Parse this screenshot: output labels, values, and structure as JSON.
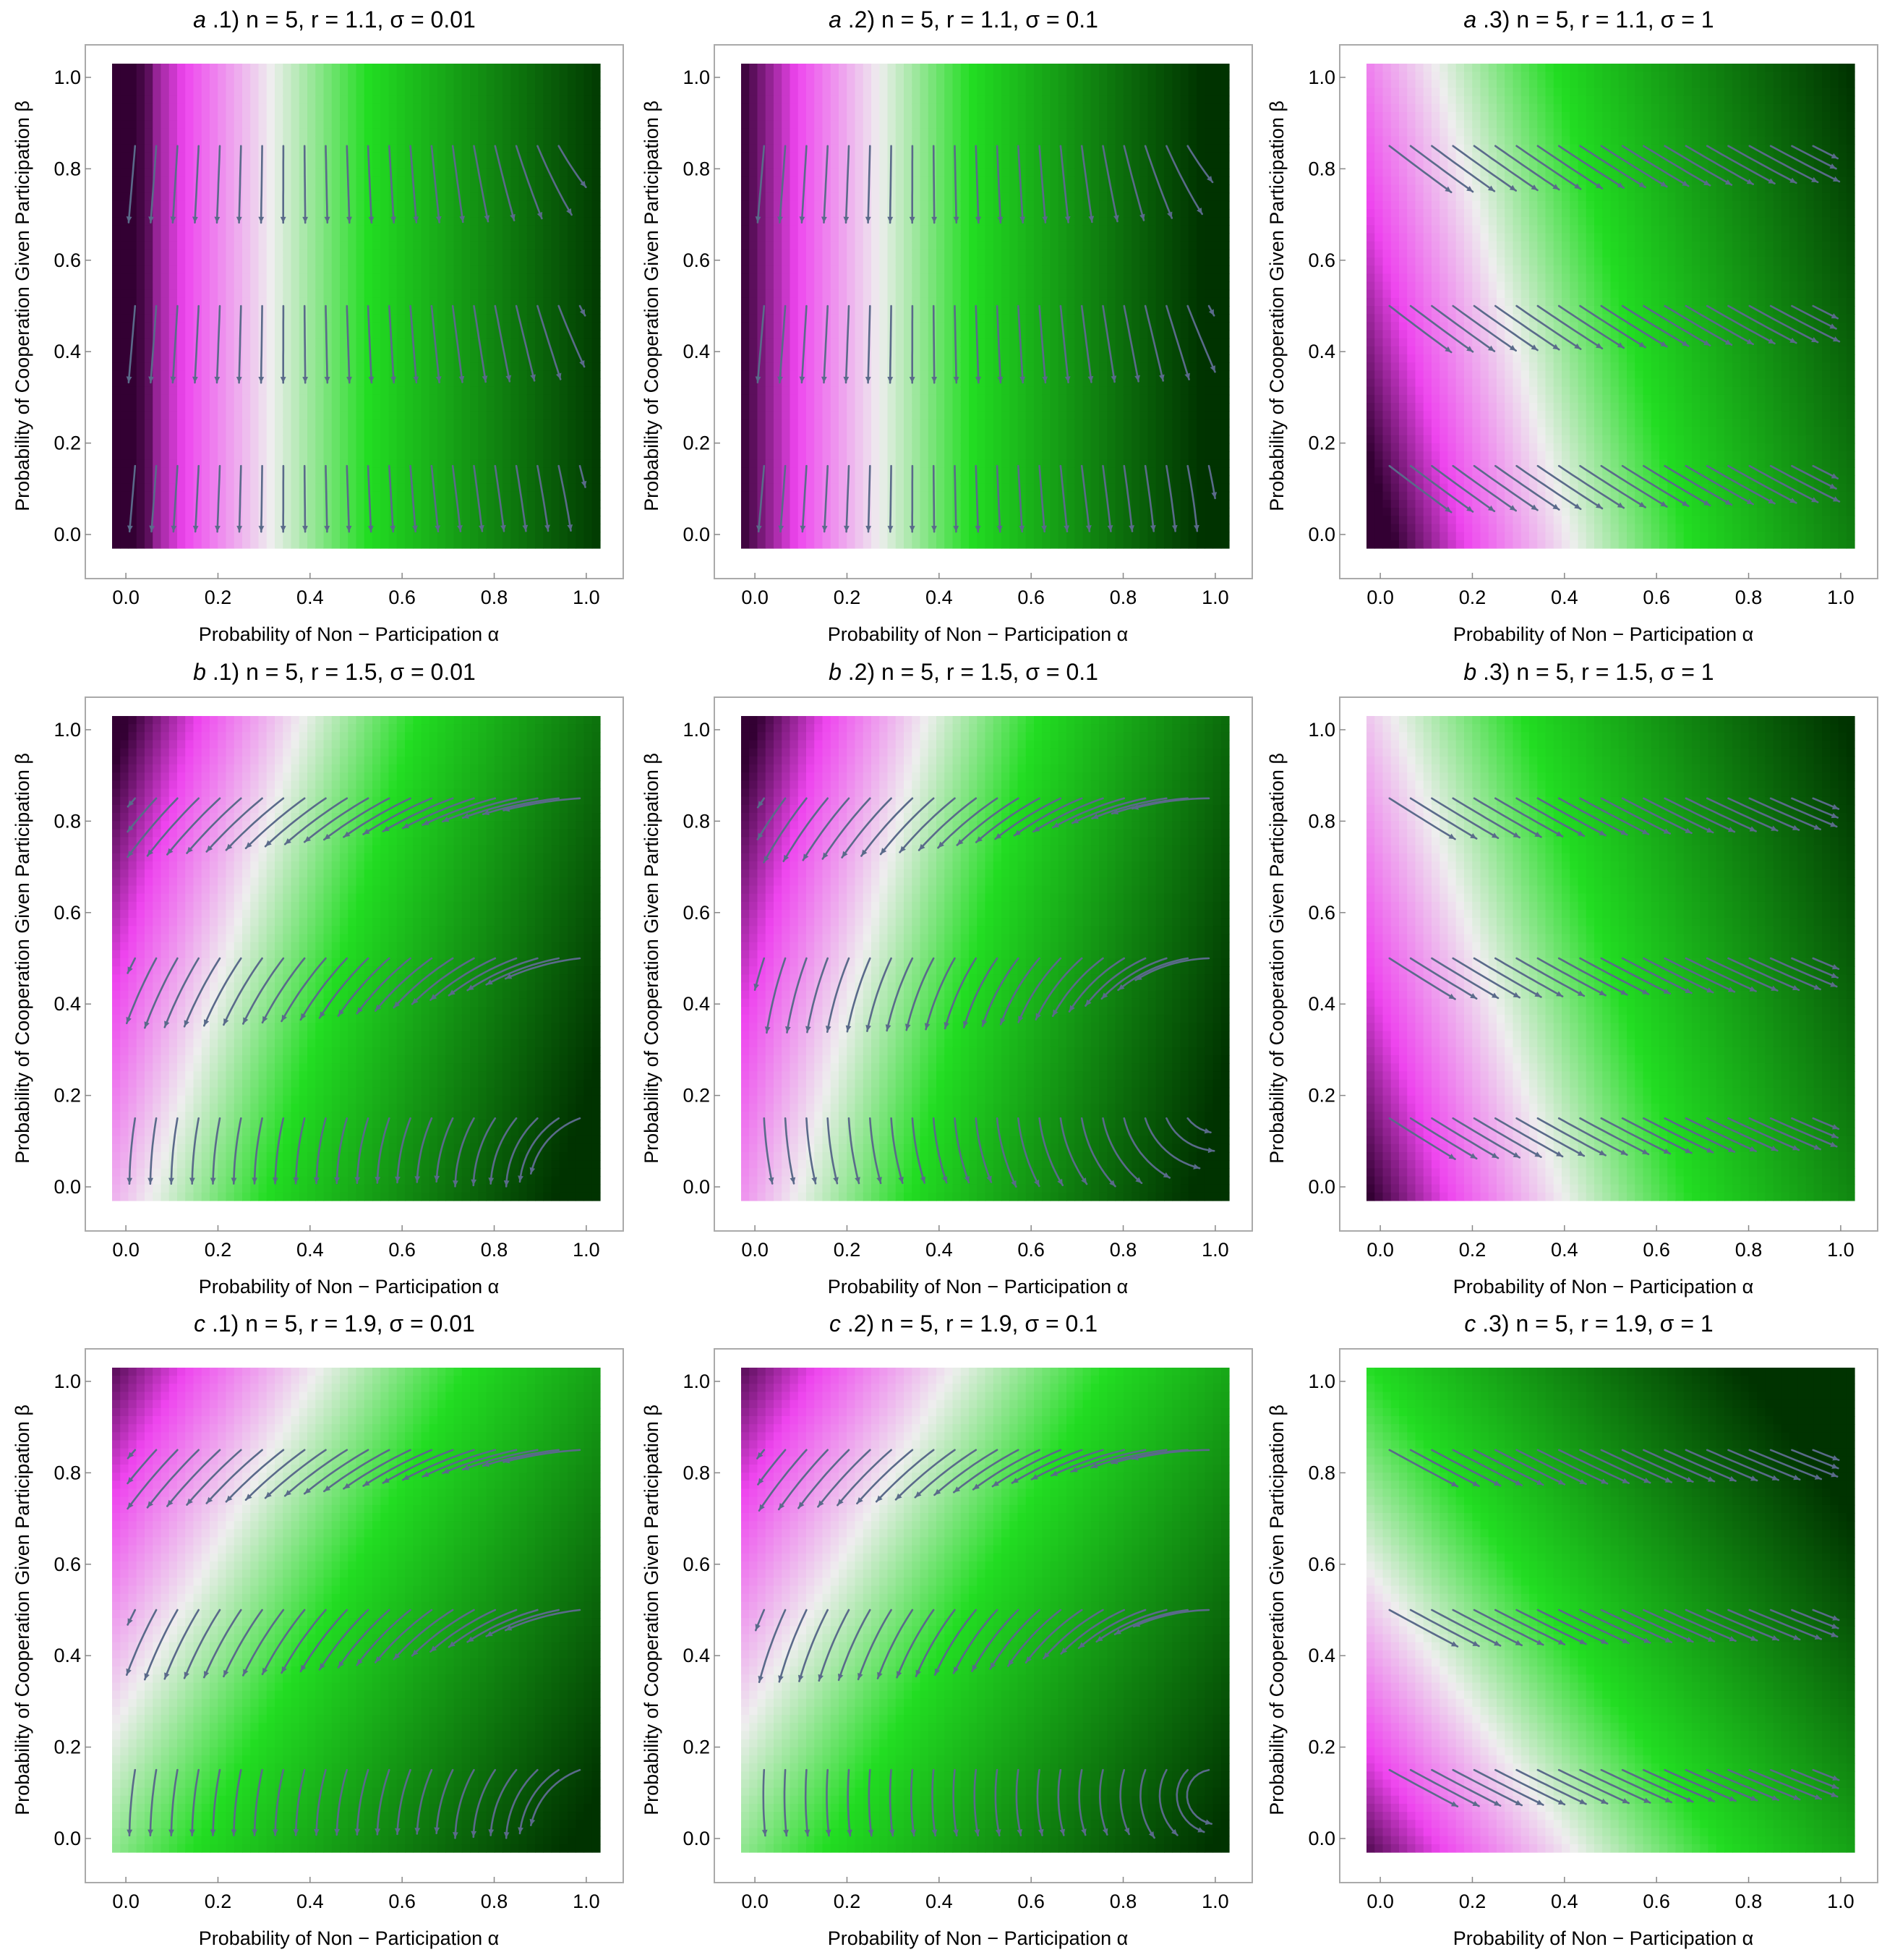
{
  "chart_data": [
    {
      "type": "heatmap",
      "panel": "a.1",
      "n": 5,
      "r": 1.1,
      "sigma": 0.01,
      "title_prefix": "a",
      "title_index": ".1)",
      "title_rest": "n = 5, r = 1.1, σ = 0.01",
      "xlabel": "Probability of Non − Participation α",
      "ylabel": "Probability of Cooperation Given Participation β",
      "xlim": [
        0,
        1
      ],
      "ylim": [
        0,
        1
      ],
      "x_ticks": [
        "0.0",
        "0.2",
        "0.4",
        "0.6",
        "0.8",
        "1.0"
      ],
      "y_ticks": [
        "0.0",
        "0.2",
        "0.4",
        "0.6",
        "0.8",
        "1.0"
      ]
    },
    {
      "type": "heatmap",
      "panel": "a.2",
      "n": 5,
      "r": 1.1,
      "sigma": 0.1,
      "title_prefix": "a",
      "title_index": ".2)",
      "title_rest": "n = 5, r = 1.1, σ = 0.1",
      "xlabel": "Probability of Non − Participation α",
      "ylabel": "Probability of Cooperation Given Participation β",
      "xlim": [
        0,
        1
      ],
      "ylim": [
        0,
        1
      ],
      "x_ticks": [
        "0.0",
        "0.2",
        "0.4",
        "0.6",
        "0.8",
        "1.0"
      ],
      "y_ticks": [
        "0.0",
        "0.2",
        "0.4",
        "0.6",
        "0.8",
        "1.0"
      ]
    },
    {
      "type": "heatmap",
      "panel": "a.3",
      "n": 5,
      "r": 1.1,
      "sigma": 1,
      "title_prefix": "a",
      "title_index": ".3)",
      "title_rest": "n = 5, r = 1.1, σ = 1",
      "xlabel": "Probability of Non − Participation α",
      "ylabel": "Probability of Cooperation Given Participation β",
      "xlim": [
        0,
        1
      ],
      "ylim": [
        0,
        1
      ],
      "x_ticks": [
        "0.0",
        "0.2",
        "0.4",
        "0.6",
        "0.8",
        "1.0"
      ],
      "y_ticks": [
        "0.0",
        "0.2",
        "0.4",
        "0.6",
        "0.8",
        "1.0"
      ]
    },
    {
      "type": "heatmap",
      "panel": "b.1",
      "n": 5,
      "r": 1.5,
      "sigma": 0.01,
      "title_prefix": "b",
      "title_index": ".1)",
      "title_rest": "n = 5, r = 1.5, σ = 0.01",
      "xlabel": "Probability of Non − Participation α",
      "ylabel": "Probability of Cooperation Given Participation β",
      "xlim": [
        0,
        1
      ],
      "ylim": [
        0,
        1
      ],
      "x_ticks": [
        "0.0",
        "0.2",
        "0.4",
        "0.6",
        "0.8",
        "1.0"
      ],
      "y_ticks": [
        "0.0",
        "0.2",
        "0.4",
        "0.6",
        "0.8",
        "1.0"
      ]
    },
    {
      "type": "heatmap",
      "panel": "b.2",
      "n": 5,
      "r": 1.5,
      "sigma": 0.1,
      "title_prefix": "b",
      "title_index": ".2)",
      "title_rest": "n = 5, r = 1.5, σ = 0.1",
      "xlabel": "Probability of Non − Participation α",
      "ylabel": "Probability of Cooperation Given Participation β",
      "xlim": [
        0,
        1
      ],
      "ylim": [
        0,
        1
      ],
      "x_ticks": [
        "0.0",
        "0.2",
        "0.4",
        "0.6",
        "0.8",
        "1.0"
      ],
      "y_ticks": [
        "0.0",
        "0.2",
        "0.4",
        "0.6",
        "0.8",
        "1.0"
      ]
    },
    {
      "type": "heatmap",
      "panel": "b.3",
      "n": 5,
      "r": 1.5,
      "sigma": 1,
      "title_prefix": "b",
      "title_index": ".3)",
      "title_rest": "n = 5, r = 1.5, σ = 1",
      "xlabel": "Probability of Non − Participation α",
      "ylabel": "Probability of Cooperation Given Participation β",
      "xlim": [
        0,
        1
      ],
      "ylim": [
        0,
        1
      ],
      "x_ticks": [
        "0.0",
        "0.2",
        "0.4",
        "0.6",
        "0.8",
        "1.0"
      ],
      "y_ticks": [
        "0.0",
        "0.2",
        "0.4",
        "0.6",
        "0.8",
        "1.0"
      ]
    },
    {
      "type": "heatmap",
      "panel": "c.1",
      "n": 5,
      "r": 1.9,
      "sigma": 0.01,
      "title_prefix": "c",
      "title_index": ".1)",
      "title_rest": "n = 5, r = 1.9, σ = 0.01",
      "xlabel": "Probability of Non − Participation α",
      "ylabel": "Probability of Cooperation Given Participation β",
      "xlim": [
        0,
        1
      ],
      "ylim": [
        0,
        1
      ],
      "x_ticks": [
        "0.0",
        "0.2",
        "0.4",
        "0.6",
        "0.8",
        "1.0"
      ],
      "y_ticks": [
        "0.0",
        "0.2",
        "0.4",
        "0.6",
        "0.8",
        "1.0"
      ]
    },
    {
      "type": "heatmap",
      "panel": "c.2",
      "n": 5,
      "r": 1.9,
      "sigma": 0.1,
      "title_prefix": "c",
      "title_index": ".2)",
      "title_rest": "n = 5, r = 1.9, σ = 0.1",
      "xlabel": "Probability of Non − Participation α",
      "ylabel": "Probability of Cooperation Given Participation β",
      "xlim": [
        0,
        1
      ],
      "ylim": [
        0,
        1
      ],
      "x_ticks": [
        "0.0",
        "0.2",
        "0.4",
        "0.6",
        "0.8",
        "1.0"
      ],
      "y_ticks": [
        "0.0",
        "0.2",
        "0.4",
        "0.6",
        "0.8",
        "1.0"
      ]
    },
    {
      "type": "heatmap",
      "panel": "c.3",
      "n": 5,
      "r": 1.9,
      "sigma": 1,
      "title_prefix": "c",
      "title_index": ".3)",
      "title_rest": "n = 5, r = 1.9, σ = 1",
      "xlabel": "Probability of Non − Participation α",
      "ylabel": "Probability of Cooperation Given Participation β",
      "xlim": [
        0,
        1
      ],
      "ylim": [
        0,
        1
      ],
      "x_ticks": [
        "0.0",
        "0.2",
        "0.4",
        "0.6",
        "0.8",
        "1.0"
      ],
      "y_ticks": [
        "0.0",
        "0.2",
        "0.4",
        "0.6",
        "0.8",
        "1.0"
      ]
    }
  ],
  "colors": {
    "magenta": "#ee44ee",
    "white": "#eeeeee",
    "green": "#22dd22",
    "dark_green": "#003300",
    "dark_purple": "#330033",
    "arrow": "#5a6a8a",
    "frame": "#aaaaaa"
  }
}
